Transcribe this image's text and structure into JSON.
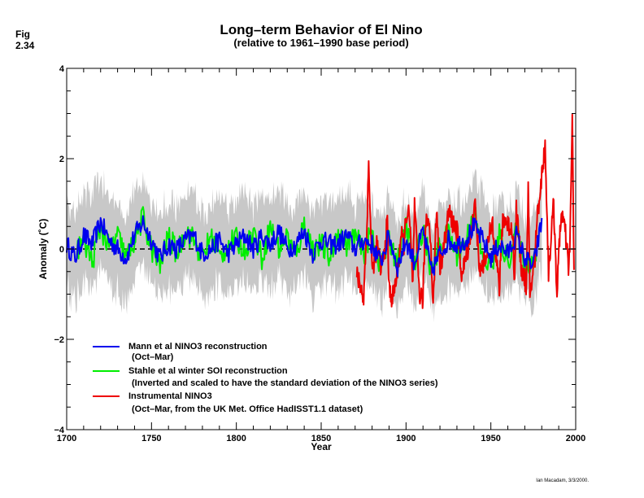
{
  "figure_label": "Fig\n2.34",
  "credit": "Ian Macadam, 3/3/2000.",
  "chart_data": {
    "type": "line",
    "title": "Long–term Behavior of El Nino",
    "subtitle": "(relative to 1961–1990 base period)",
    "xlabel": "Year",
    "ylabel": "Anomaly (˚C)",
    "xlim": [
      1700,
      2000
    ],
    "ylim": [
      -4,
      4
    ],
    "x_ticks": [
      1700,
      1750,
      1800,
      1850,
      1900,
      1950,
      2000
    ],
    "y_ticks": [
      -4,
      -2,
      0,
      2,
      4
    ],
    "x_ticks_labels": [
      "1700",
      "1750",
      "1800",
      "1850",
      "1900",
      "1950",
      "2000"
    ],
    "y_ticks_labels": [
      "−4",
      "−2",
      "0",
      "2",
      "4"
    ],
    "grid": false,
    "zero_line": "dashed",
    "legend_position": "bottom-left",
    "colors": {
      "mann": "#0000ee",
      "stahle": "#00ee00",
      "instrumental": "#ee0000",
      "band": "#c8c8c8"
    },
    "series": [
      {
        "name": "Mann et al NINO3 reconstruction",
        "detail": "(Oct–Mar)",
        "x_range": [
          1700,
          1980
        ],
        "keypoints": [
          [
            1700,
            0.1
          ],
          [
            1705,
            -0.2
          ],
          [
            1710,
            0.3
          ],
          [
            1715,
            0.1
          ],
          [
            1720,
            0.6
          ],
          [
            1725,
            0.2
          ],
          [
            1730,
            0.0
          ],
          [
            1735,
            -0.2
          ],
          [
            1740,
            0.3
          ],
          [
            1745,
            0.6
          ],
          [
            1750,
            0.2
          ],
          [
            1755,
            -0.2
          ],
          [
            1760,
            0.1
          ],
          [
            1765,
            0.0
          ],
          [
            1770,
            0.2
          ],
          [
            1775,
            0.3
          ],
          [
            1780,
            -0.1
          ],
          [
            1785,
            0.0
          ],
          [
            1790,
            0.2
          ],
          [
            1795,
            -0.1
          ],
          [
            1800,
            0.1
          ],
          [
            1805,
            0.3
          ],
          [
            1810,
            0.0
          ],
          [
            1815,
            0.3
          ],
          [
            1820,
            0.1
          ],
          [
            1825,
            0.4
          ],
          [
            1830,
            0.0
          ],
          [
            1835,
            0.1
          ],
          [
            1840,
            0.4
          ],
          [
            1845,
            -0.1
          ],
          [
            1850,
            0.2
          ],
          [
            1855,
            0.1
          ],
          [
            1860,
            0.1
          ],
          [
            1865,
            0.3
          ],
          [
            1870,
            0.0
          ],
          [
            1875,
            0.2
          ],
          [
            1880,
            0.1
          ],
          [
            1885,
            -0.3
          ],
          [
            1890,
            0.3
          ],
          [
            1895,
            -0.4
          ],
          [
            1900,
            0.2
          ],
          [
            1905,
            -0.3
          ],
          [
            1910,
            0.4
          ],
          [
            1915,
            -0.5
          ],
          [
            1920,
            -0.1
          ],
          [
            1925,
            0.2
          ],
          [
            1930,
            0.1
          ],
          [
            1935,
            0.2
          ],
          [
            1940,
            0.5
          ],
          [
            1945,
            0.2
          ],
          [
            1950,
            -0.2
          ],
          [
            1955,
            0.1
          ],
          [
            1960,
            -0.1
          ],
          [
            1965,
            0.3
          ],
          [
            1970,
            -0.2
          ],
          [
            1975,
            -0.4
          ],
          [
            1980,
            0.6
          ]
        ]
      },
      {
        "name": "Stahle et al winter SOI reconstruction",
        "detail": "(Inverted and scaled to have the standard deviation of the NINO3 series)",
        "x_range": [
          1706,
          1977
        ],
        "keypoints": [
          [
            1706,
            0.0
          ],
          [
            1710,
            0.2
          ],
          [
            1715,
            -0.3
          ],
          [
            1720,
            0.5
          ],
          [
            1725,
            0.0
          ],
          [
            1730,
            0.3
          ],
          [
            1735,
            -0.2
          ],
          [
            1740,
            0.2
          ],
          [
            1745,
            0.7
          ],
          [
            1750,
            0.0
          ],
          [
            1755,
            -0.4
          ],
          [
            1760,
            0.3
          ],
          [
            1765,
            -0.1
          ],
          [
            1770,
            0.4
          ],
          [
            1775,
            0.2
          ],
          [
            1780,
            -0.2
          ],
          [
            1785,
            0.3
          ],
          [
            1790,
            -0.2
          ],
          [
            1795,
            0.1
          ],
          [
            1800,
            0.2
          ],
          [
            1805,
            0.0
          ],
          [
            1810,
            0.4
          ],
          [
            1815,
            -0.2
          ],
          [
            1820,
            0.5
          ],
          [
            1825,
            0.0
          ],
          [
            1830,
            0.3
          ],
          [
            1835,
            -0.2
          ],
          [
            1840,
            0.6
          ],
          [
            1845,
            0.0
          ],
          [
            1850,
            0.1
          ],
          [
            1855,
            -0.2
          ],
          [
            1860,
            0.4
          ],
          [
            1865,
            0.1
          ],
          [
            1870,
            0.3
          ],
          [
            1875,
            -0.1
          ],
          [
            1880,
            0.4
          ],
          [
            1885,
            -0.4
          ],
          [
            1890,
            0.2
          ],
          [
            1895,
            -0.3
          ],
          [
            1900,
            0.5
          ],
          [
            1905,
            -0.4
          ],
          [
            1910,
            0.5
          ],
          [
            1915,
            -0.5
          ],
          [
            1920,
            0.1
          ],
          [
            1925,
            0.3
          ],
          [
            1930,
            -0.1
          ],
          [
            1935,
            0.1
          ],
          [
            1940,
            0.9
          ],
          [
            1945,
            -0.2
          ],
          [
            1950,
            -0.4
          ],
          [
            1955,
            0.3
          ],
          [
            1960,
            -0.3
          ],
          [
            1965,
            0.4
          ],
          [
            1970,
            -0.4
          ],
          [
            1977,
            -0.1
          ]
        ]
      },
      {
        "name": "Instrumental NINO3",
        "detail": "(Oct–Mar, from the UK Met. Office HadISST1.1 dataset)",
        "x_range": [
          1871,
          1999
        ],
        "keypoints": [
          [
            1871,
            -0.6
          ],
          [
            1873,
            -0.8
          ],
          [
            1875,
            -1.1
          ],
          [
            1877,
            0.6
          ],
          [
            1878,
            1.9
          ],
          [
            1880,
            -0.5
          ],
          [
            1883,
            0.1
          ],
          [
            1885,
            -0.4
          ],
          [
            1887,
            -0.2
          ],
          [
            1889,
            0.6
          ],
          [
            1890,
            -0.9
          ],
          [
            1892,
            -1.1
          ],
          [
            1895,
            -0.5
          ],
          [
            1897,
            0.3
          ],
          [
            1899,
            0.1
          ],
          [
            1900,
            0.8
          ],
          [
            1902,
            0.7
          ],
          [
            1904,
            -0.8
          ],
          [
            1905,
            0.9
          ],
          [
            1908,
            -1.0
          ],
          [
            1910,
            -1.1
          ],
          [
            1911,
            0.1
          ],
          [
            1912,
            0.7
          ],
          [
            1914,
            0.6
          ],
          [
            1916,
            -1.3
          ],
          [
            1918,
            0.9
          ],
          [
            1920,
            -0.4
          ],
          [
            1923,
            0.2
          ],
          [
            1925,
            0.8
          ],
          [
            1930,
            0.4
          ],
          [
            1933,
            -0.6
          ],
          [
            1939,
            0.5
          ],
          [
            1940,
            0.8
          ],
          [
            1941,
            1.0
          ],
          [
            1943,
            -0.5
          ],
          [
            1946,
            -0.3
          ],
          [
            1951,
            0.6
          ],
          [
            1954,
            -0.5
          ],
          [
            1955,
            -0.9
          ],
          [
            1957,
            0.7
          ],
          [
            1963,
            0.4
          ],
          [
            1964,
            -0.8
          ],
          [
            1965,
            0.9
          ],
          [
            1968,
            -0.4
          ],
          [
            1971,
            -0.8
          ],
          [
            1972,
            1.3
          ],
          [
            1973,
            -1.0
          ],
          [
            1976,
            -0.2
          ],
          [
            1977,
            0.6
          ],
          [
            1982,
            2.3
          ],
          [
            1984,
            -0.5
          ],
          [
            1986,
            0.5
          ],
          [
            1987,
            1.0
          ],
          [
            1989,
            -1.0
          ],
          [
            1991,
            0.6
          ],
          [
            1992,
            0.8
          ],
          [
            1994,
            0.3
          ],
          [
            1996,
            -0.5
          ],
          [
            1997,
            0.8
          ],
          [
            1998,
            2.9
          ],
          [
            1999,
            -0.5
          ]
        ]
      }
    ],
    "uncertainty_band": {
      "x_range": [
        1700,
        1980
      ],
      "approx_halfwidth": 0.95
    }
  }
}
